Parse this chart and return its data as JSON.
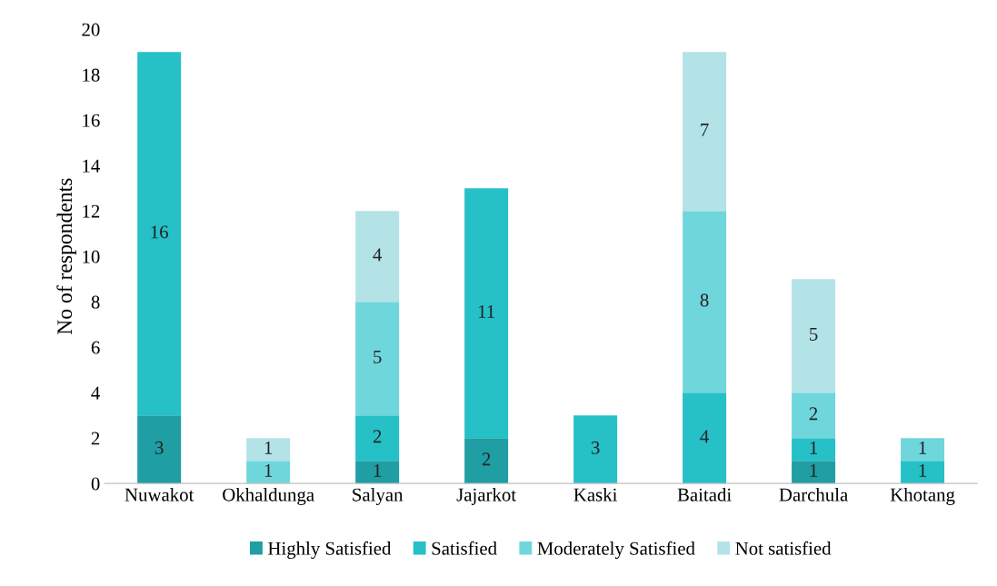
{
  "chart_data": {
    "type": "bar",
    "stacked": true,
    "ylabel": "No of respondents",
    "categories": [
      "Nuwakot",
      "Okhaldunga",
      "Salyan",
      "Jajarkot",
      "Kaski",
      "Baitadi",
      "Darchula",
      "Khotang"
    ],
    "series": [
      {
        "name": "Highly Satisfied",
        "color": "#1f9ea3",
        "values": [
          3,
          null,
          1,
          2,
          null,
          null,
          1,
          null
        ]
      },
      {
        "name": "Satisfied",
        "color": "#26c0c7",
        "values": [
          16,
          null,
          2,
          11,
          3,
          4,
          1,
          1
        ]
      },
      {
        "name": "Moderately Satisfied",
        "color": "#6fd6dc",
        "values": [
          null,
          1,
          5,
          null,
          null,
          8,
          2,
          1
        ]
      },
      {
        "name": "Not satisfied",
        "color": "#b3e3e7",
        "values": [
          null,
          1,
          4,
          null,
          null,
          7,
          5,
          null
        ]
      }
    ],
    "ylim": [
      0,
      20
    ],
    "yticks": [
      0,
      2,
      4,
      6,
      8,
      10,
      12,
      14,
      16,
      18,
      20
    ],
    "data_labels": true,
    "legend": "bottom",
    "grid": false
  }
}
